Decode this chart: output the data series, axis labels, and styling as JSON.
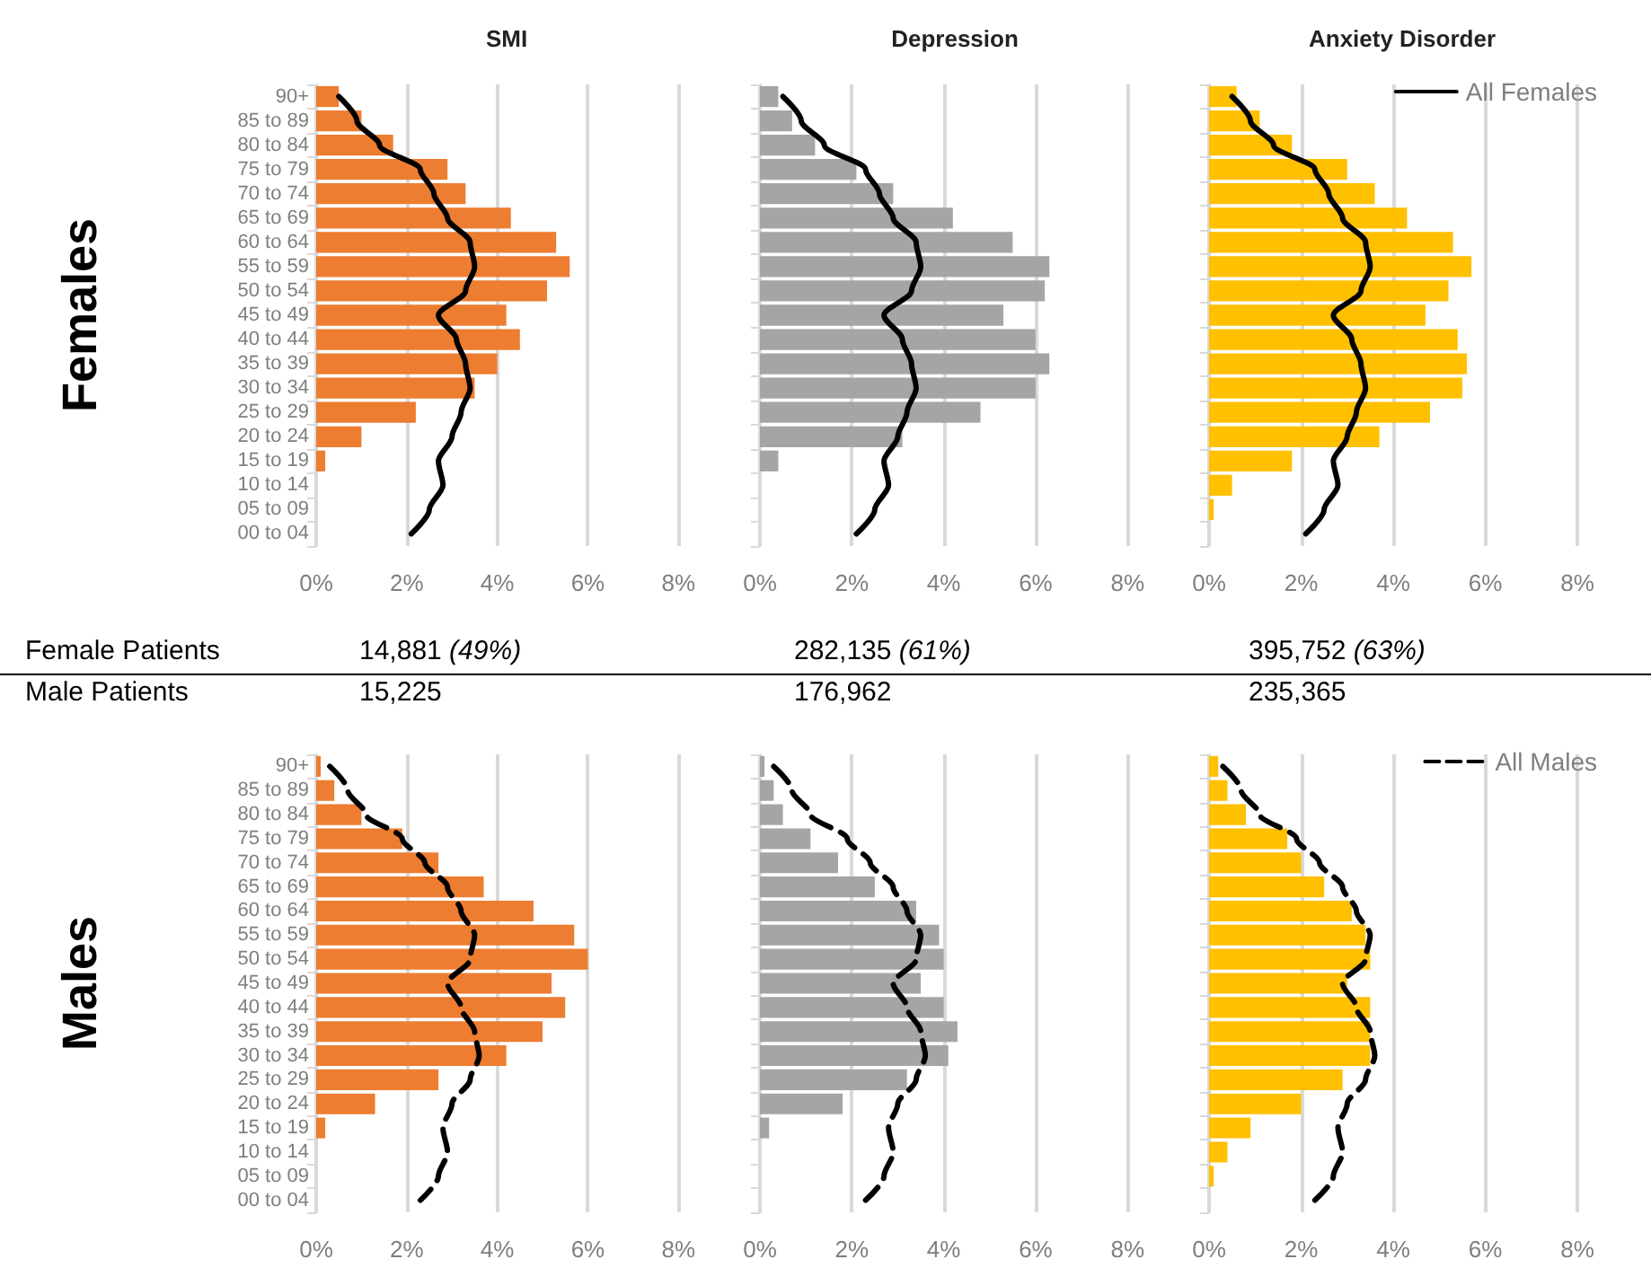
{
  "chart_data": [
    {
      "type": "bar",
      "orientation": "horizontal",
      "title": "SMI",
      "ylabel": "Females",
      "categories": [
        "90+",
        "85 to 89",
        "80 to 84",
        "75 to 79",
        "70 to 74",
        "65 to 69",
        "60 to 64",
        "55 to 59",
        "50 to 54",
        "45 to 49",
        "40 to 44",
        "35 to 39",
        "30 to 34",
        "25 to 29",
        "20 to 24",
        "15 to 19",
        "10 to 14",
        "05 to 09",
        "00 to 04"
      ],
      "series": [
        {
          "type": "bar",
          "color": "#ed7d31",
          "values": [
            0.5,
            1.0,
            1.7,
            2.9,
            3.3,
            4.3,
            5.3,
            5.6,
            5.1,
            4.2,
            4.5,
            4.0,
            3.5,
            2.2,
            1.0,
            0.2,
            0,
            0,
            0
          ]
        },
        {
          "type": "line",
          "color": "#000000",
          "line_style": "solid",
          "values": [
            0.5,
            0.9,
            1.4,
            2.3,
            2.6,
            2.9,
            3.4,
            3.5,
            3.3,
            2.7,
            3.1,
            3.3,
            3.4,
            3.2,
            3.0,
            2.7,
            2.8,
            2.5,
            2.1
          ]
        }
      ],
      "xlim": [
        0,
        8
      ],
      "xticks": [
        {
          "value": 0,
          "label": "0%"
        },
        {
          "value": 2,
          "label": "2%"
        },
        {
          "value": 4,
          "label": "4%"
        },
        {
          "value": 6,
          "label": "6%"
        },
        {
          "value": 8,
          "label": "8%"
        }
      ],
      "grid": "x",
      "marker": "none"
    },
    {
      "type": "bar",
      "orientation": "horizontal",
      "title": "Depression",
      "categories": [
        null,
        null,
        null,
        null,
        null,
        null,
        null,
        null,
        null,
        null,
        null,
        null,
        null,
        null,
        null,
        null,
        null,
        null,
        null
      ],
      "series": [
        {
          "type": "bar",
          "color": "#a5a5a5",
          "values": [
            0.4,
            0.7,
            1.2,
            2.1,
            2.9,
            4.2,
            5.5,
            6.3,
            6.2,
            5.3,
            6.0,
            6.3,
            6.0,
            4.8,
            3.1,
            0.4,
            0,
            0,
            0
          ]
        },
        {
          "type": "line",
          "color": "#000000",
          "line_style": "solid",
          "values": [
            0.5,
            0.9,
            1.4,
            2.3,
            2.6,
            2.9,
            3.4,
            3.5,
            3.3,
            2.7,
            3.1,
            3.3,
            3.4,
            3.2,
            3.0,
            2.7,
            2.8,
            2.5,
            2.1
          ]
        }
      ],
      "xlim": [
        0,
        8
      ],
      "xticks": [
        {
          "value": 0,
          "label": "0%"
        },
        {
          "value": 2,
          "label": "2%"
        },
        {
          "value": 4,
          "label": "4%"
        },
        {
          "value": 6,
          "label": "6%"
        },
        {
          "value": 8,
          "label": "8%"
        }
      ],
      "grid": "x",
      "marker": "none",
      "tick_labels": "x"
    },
    {
      "type": "bar",
      "orientation": "horizontal",
      "title": "Anxiety Disorder",
      "categories": [
        null,
        null,
        null,
        null,
        null,
        null,
        null,
        null,
        null,
        null,
        null,
        null,
        null,
        null,
        null,
        null,
        null,
        null,
        null
      ],
      "series": [
        {
          "type": "bar",
          "color": "#ffc000",
          "values": [
            0.6,
            1.1,
            1.8,
            3.0,
            3.6,
            4.3,
            5.3,
            5.7,
            5.2,
            4.7,
            5.4,
            5.6,
            5.5,
            4.8,
            3.7,
            1.8,
            0.5,
            0.1,
            0
          ]
        },
        {
          "type": "line",
          "name": "All Females",
          "color": "#000000",
          "line_style": "solid",
          "values": [
            0.5,
            0.9,
            1.4,
            2.3,
            2.6,
            2.9,
            3.4,
            3.5,
            3.3,
            2.7,
            3.1,
            3.3,
            3.4,
            3.2,
            3.0,
            2.7,
            2.8,
            2.5,
            2.1
          ]
        }
      ],
      "xlim": [
        0,
        8
      ],
      "xticks": [
        {
          "value": 0,
          "label": "0%"
        },
        {
          "value": 2,
          "label": "2%"
        },
        {
          "value": 4,
          "label": "4%"
        },
        {
          "value": 6,
          "label": "6%"
        },
        {
          "value": 8,
          "label": "8%"
        }
      ],
      "grid": "x",
      "marker": "none",
      "tick_labels": "x",
      "legend": "top right"
    },
    {
      "type": "other",
      "annotations": [
        "Female Patients",
        "14,881 (49%)",
        "282,135 (61%)",
        "395,752 (63%)",
        "Male Patients",
        "15,225",
        "176,962",
        "235,365"
      ]
    },
    {
      "type": "bar",
      "orientation": "horizontal",
      "ylabel": "Males",
      "categories": [
        "90+",
        "85 to 89",
        "80 to 84",
        "75 to 79",
        "70 to 74",
        "65 to 69",
        "60 to 64",
        "55 to 59",
        "50 to 54",
        "45 to 49",
        "40 to 44",
        "35 to 39",
        "30 to 34",
        "25 to 29",
        "20 to 24",
        "15 to 19",
        "10 to 14",
        "05 to 09",
        "00 to 04"
      ],
      "series": [
        {
          "type": "bar",
          "color": "#ed7d31",
          "values": [
            0.1,
            0.4,
            1.0,
            1.9,
            2.7,
            3.7,
            4.8,
            5.7,
            6.0,
            5.2,
            5.5,
            5.0,
            4.2,
            2.7,
            1.3,
            0.2,
            0,
            0,
            0
          ]
        },
        {
          "type": "line",
          "color": "#000000",
          "line_style": "dashed",
          "values": [
            0.3,
            0.7,
            1.1,
            1.9,
            2.4,
            2.9,
            3.2,
            3.5,
            3.4,
            2.9,
            3.2,
            3.5,
            3.6,
            3.4,
            3.0,
            2.8,
            2.9,
            2.7,
            2.3
          ]
        }
      ],
      "xlim": [
        0,
        8
      ],
      "xticks": [
        {
          "value": 0,
          "label": "0%"
        },
        {
          "value": 2,
          "label": "2%"
        },
        {
          "value": 4,
          "label": "4%"
        },
        {
          "value": 6,
          "label": "6%"
        },
        {
          "value": 8,
          "label": "8%"
        }
      ],
      "grid": "x",
      "marker": "none"
    },
    {
      "type": "bar",
      "orientation": "horizontal",
      "categories": [
        null,
        null,
        null,
        null,
        null,
        null,
        null,
        null,
        null,
        null,
        null,
        null,
        null,
        null,
        null,
        null,
        null,
        null,
        null
      ],
      "series": [
        {
          "type": "bar",
          "color": "#a5a5a5",
          "values": [
            0.1,
            0.3,
            0.5,
            1.1,
            1.7,
            2.5,
            3.4,
            3.9,
            4.0,
            3.5,
            4.0,
            4.3,
            4.1,
            3.2,
            1.8,
            0.2,
            0,
            0,
            0
          ]
        },
        {
          "type": "line",
          "color": "#000000",
          "line_style": "dashed",
          "values": [
            0.3,
            0.7,
            1.1,
            1.9,
            2.4,
            2.9,
            3.2,
            3.5,
            3.4,
            2.9,
            3.2,
            3.5,
            3.6,
            3.4,
            3.0,
            2.8,
            2.9,
            2.7,
            2.3
          ]
        }
      ],
      "xlim": [
        0,
        8
      ],
      "xticks": [
        {
          "value": 0,
          "label": "0%"
        },
        {
          "value": 2,
          "label": "2%"
        },
        {
          "value": 4,
          "label": "4%"
        },
        {
          "value": 6,
          "label": "6%"
        },
        {
          "value": 8,
          "label": "8%"
        }
      ],
      "grid": "x",
      "marker": "none",
      "tick_labels": "x"
    },
    {
      "type": "bar",
      "orientation": "horizontal",
      "categories": [
        null,
        null,
        null,
        null,
        null,
        null,
        null,
        null,
        null,
        null,
        null,
        null,
        null,
        null,
        null,
        null,
        null,
        null,
        null
      ],
      "series": [
        {
          "type": "bar",
          "color": "#ffc000",
          "values": [
            0.2,
            0.4,
            0.8,
            1.7,
            2.0,
            2.5,
            3.1,
            3.4,
            3.5,
            3.0,
            3.5,
            3.5,
            3.5,
            2.9,
            2.0,
            0.9,
            0.4,
            0.1,
            0
          ]
        },
        {
          "type": "line",
          "name": "All Males",
          "color": "#000000",
          "line_style": "dashed",
          "values": [
            0.3,
            0.7,
            1.1,
            1.9,
            2.4,
            2.9,
            3.2,
            3.5,
            3.4,
            2.9,
            3.2,
            3.5,
            3.6,
            3.4,
            3.0,
            2.8,
            2.9,
            2.7,
            2.3
          ]
        }
      ],
      "xlim": [
        0,
        8
      ],
      "xticks": [
        {
          "value": 0,
          "label": "0%"
        },
        {
          "value": 2,
          "label": "2%"
        },
        {
          "value": 4,
          "label": "4%"
        },
        {
          "value": 6,
          "label": "6%"
        },
        {
          "value": 8,
          "label": "8%"
        }
      ],
      "grid": "x",
      "marker": "none",
      "tick_labels": "x",
      "legend": "top right"
    }
  ]
}
